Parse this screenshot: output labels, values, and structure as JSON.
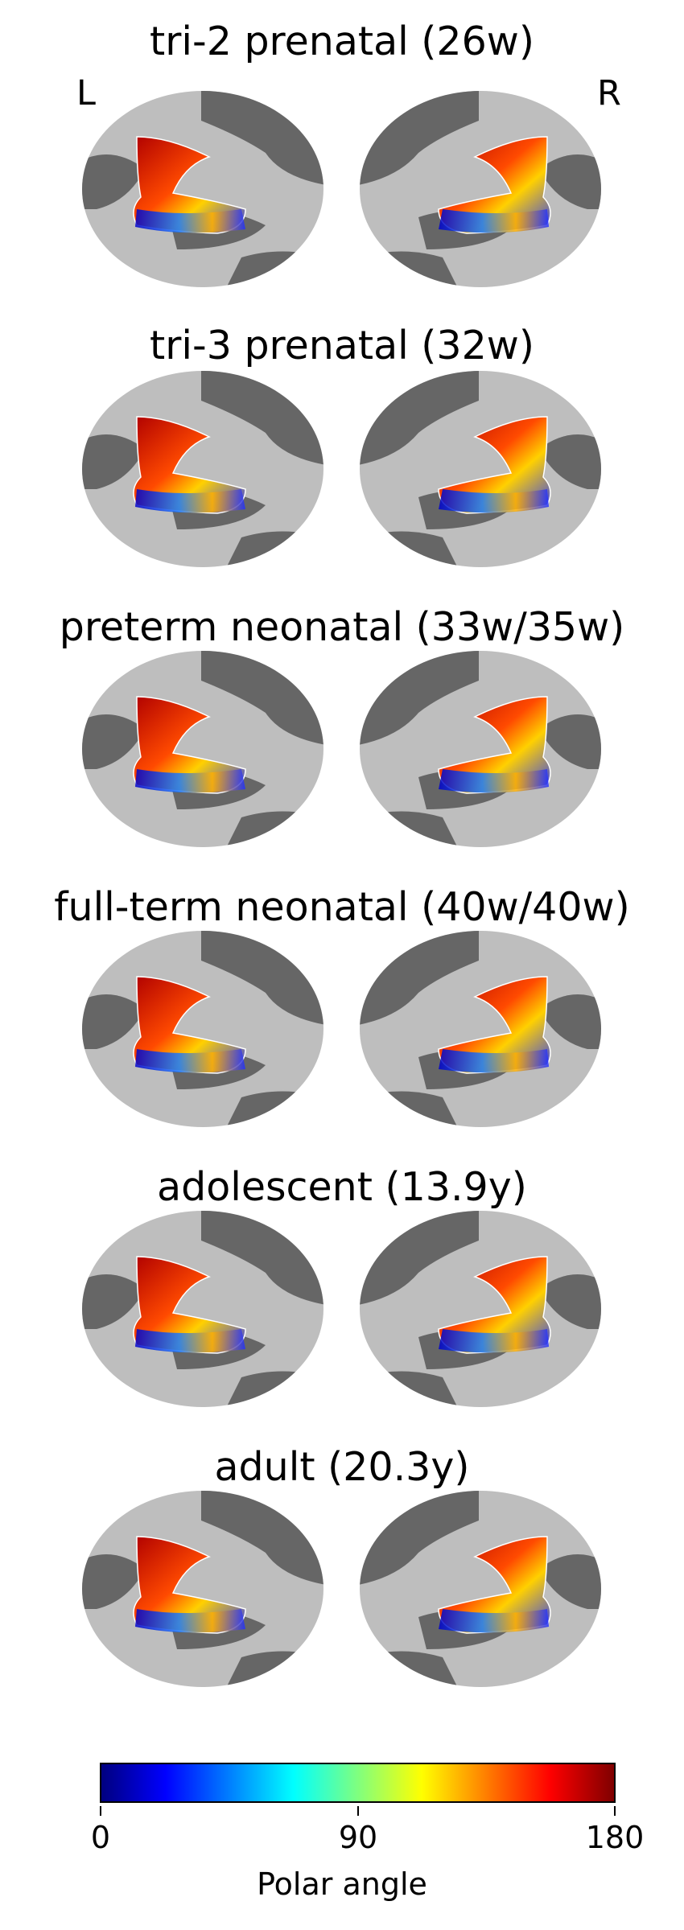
{
  "hemisphere_labels": {
    "left": "L",
    "right": "R"
  },
  "rows": [
    {
      "title": "tri-2 prenatal (26w)"
    },
    {
      "title": "tri-3 prenatal (32w)"
    },
    {
      "title": "preterm neonatal (33w/35w)"
    },
    {
      "title": "full-term neonatal (40w/40w)"
    },
    {
      "title": "adolescent (13.9y)"
    },
    {
      "title": "adult (20.3y)"
    }
  ],
  "colorbar": {
    "label": "Polar angle",
    "colormap": "jet",
    "range": [
      0,
      180
    ],
    "ticks": [
      "0",
      "90",
      "180"
    ]
  },
  "colors": {
    "sulcus": "#666666",
    "gyrus": "#bebebe",
    "roi_blue": "#1a3cff",
    "roi_red": "#b00000"
  }
}
